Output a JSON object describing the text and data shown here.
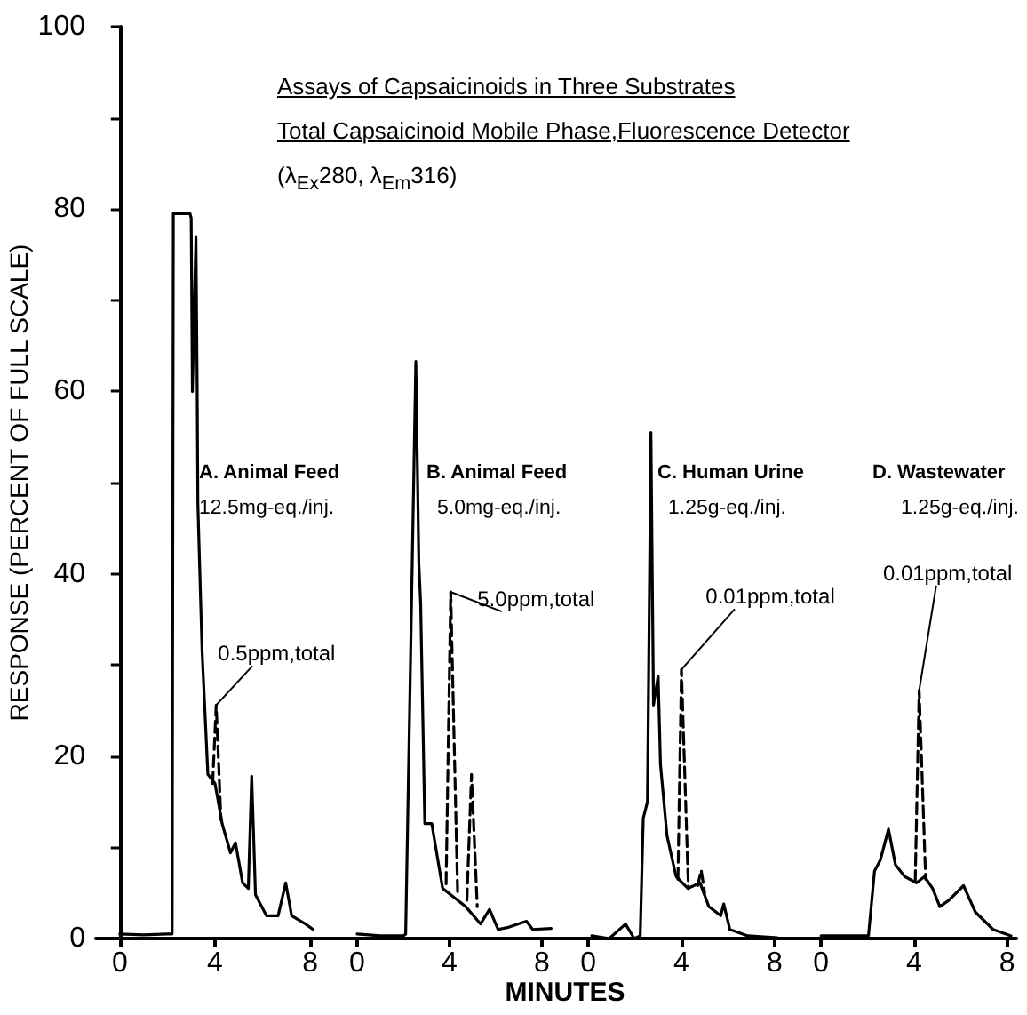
{
  "chart_data": [
    {
      "type": "line",
      "title": "A. Animal Feed",
      "subtitle": "12.5mg-eq./inj.",
      "ylabel": "RESPONSE (PERCENT OF FULL SCALE)",
      "marker": "none",
      "annotations": [
        "Assays of Capsaicinoids in Three Substrates",
        "Total Capsaicinoid Mobile Phase,Fluorescence Detector",
        "(λ$_{Ex}$280, λ$_{Em}$316)",
        {
          "text": "0.5ppm,total",
          "x": 4.05,
          "y": 25.6
        }
      ],
      "xlim": [
        -1,
        9
      ],
      "xticks": [
        0,
        4,
        8
      ],
      "ylim": [
        0,
        100
      ],
      "yticks": [
        0,
        {
          "value": 10,
          "label": null
        },
        20,
        {
          "value": 30,
          "label": null
        },
        40,
        {
          "value": 50,
          "label": null
        },
        60,
        {
          "value": 70,
          "label": null
        },
        80,
        {
          "value": 90,
          "label": null
        },
        100
      ],
      "series": [
        {
          "color": "#000000",
          "x": [
            0,
            1,
            2.0,
            2.2,
            2.25,
            2.95,
            3.0,
            3.05,
            3.2,
            3.25,
            3.28,
            3.46,
            3.7,
            4.0,
            4.3,
            4.65,
            4.86,
            5.16,
            5.4,
            5.54,
            5.7,
            6.16,
            6.65,
            6.97,
            7.22,
            7.8,
            8.12
          ],
          "values": [
            0.5,
            0.4,
            0.5,
            0.5,
            79.5,
            79.5,
            79,
            60,
            77,
            61,
            47.7,
            31.4,
            18,
            17,
            12.6,
            9.4,
            10.5,
            6.1,
            5.5,
            17.8,
            4.8,
            2.5,
            2.5,
            6.1,
            2.5,
            1.6,
            1.0
          ]
        },
        {
          "color": "#000000",
          "line_style": "dashed",
          "x": [
            3.9,
            4.05,
            4.25
          ],
          "values": [
            17,
            25.6,
            13
          ]
        }
      ]
    },
    {
      "type": "line",
      "title": "B. Animal Feed",
      "subtitle": "5.0mg-eq./inj.",
      "xlabel": "MINUTES",
      "tick_labels": "x",
      "marker": "none",
      "annotations": [
        {
          "text": "5.0ppm,total",
          "x": 4.05,
          "y": 38
        }
      ],
      "xlim": [
        -1,
        9
      ],
      "xticks": [
        0,
        4,
        8
      ],
      "ylim": [
        0,
        100
      ],
      "yticks": [
        0,
        20,
        40,
        60,
        80,
        100
      ],
      "series": [
        {
          "color": "#000000",
          "x": [
            0,
            1,
            2.0,
            2.1,
            2.54,
            2.67,
            2.75,
            2.93,
            3.23,
            3.7,
            4.7,
            5.34,
            5.73,
            6.1,
            6.5,
            7.33,
            7.6,
            8.4
          ],
          "values": [
            0.5,
            0.3,
            0.3,
            0.5,
            63.3,
            41.2,
            36.7,
            12.6,
            12.6,
            5.5,
            3.5,
            1.6,
            3.2,
            1.0,
            1.2,
            1.9,
            1.0,
            1.1
          ]
        },
        {
          "color": "#000000",
          "line_style": "dashed",
          "x": [
            3.85,
            4.05,
            4.35
          ],
          "values": [
            6,
            38,
            5
          ]
        },
        {
          "color": "#000000",
          "line_style": "dashed",
          "x": [
            4.75,
            4.95,
            5.2
          ],
          "values": [
            4.2,
            18,
            3.5
          ]
        }
      ]
    },
    {
      "type": "line",
      "title": "C. Human Urine",
      "subtitle": "1.25g-eq./inj.",
      "tick_labels": "x",
      "marker": "none",
      "annotations": [
        {
          "text": "0.01ppm,total",
          "x": 4.0,
          "y": 29.5
        }
      ],
      "xlim": [
        -1,
        9
      ],
      "xticks": [
        0,
        4,
        8
      ],
      "ylim": [
        0,
        100
      ],
      "yticks": [
        0,
        20,
        40,
        60,
        80,
        100
      ],
      "series": [
        {
          "color": "#000000",
          "x": [
            0.15,
            0.9,
            1.6,
            1.97,
            2.23,
            2.36,
            2.54,
            2.69,
            2.8,
            3.0,
            3.1,
            3.38,
            3.77,
            4.28,
            4.8,
            5.18,
            5.69,
            5.82,
            6.08,
            6.85,
            8.13
          ],
          "values": [
            0.3,
            0,
            1.6,
            0,
            0.3,
            13.2,
            15,
            55.5,
            25.6,
            28.8,
            19.1,
            11.3,
            6.8,
            5.5,
            6.1,
            3.5,
            2.5,
            3.8,
            1.0,
            0.3,
            0.1
          ]
        },
        {
          "color": "#000000",
          "line_style": "dashed",
          "x": [
            3.85,
            4.0,
            4.3
          ],
          "values": [
            6.5,
            29.5,
            5.5
          ]
        },
        {
          "color": "#000000",
          "line_style": "dashed",
          "x": [
            4.7,
            4.85,
            5.0
          ],
          "values": [
            5.8,
            7.5,
            5
          ]
        }
      ]
    },
    {
      "type": "line",
      "title": "D. Wastewater",
      "subtitle": "1.25g-eq./inj.",
      "tick_labels": "x",
      "marker": "none",
      "annotations": [
        {
          "text": "0.01ppm,total",
          "x": 4.22,
          "y": 27.2
        }
      ],
      "xlim": [
        -1,
        8.4
      ],
      "xticks": [
        0,
        4,
        8
      ],
      "ylim": [
        0,
        100
      ],
      "yticks": [
        0,
        20,
        40,
        60,
        80,
        100
      ],
      "series": [
        {
          "color": "#000000",
          "x": [
            0,
            1,
            2.04,
            2.3,
            2.55,
            2.9,
            3.2,
            3.6,
            4.1,
            4.45,
            4.8,
            5.11,
            5.5,
            6.13,
            6.64,
            7.4,
            8.17
          ],
          "values": [
            0.3,
            0.3,
            0.3,
            7.4,
            8.6,
            12,
            8.1,
            6.8,
            6.1,
            6.8,
            5.5,
            3.5,
            4.2,
            5.8,
            2.9,
            1.0,
            0.3
          ]
        },
        {
          "color": "#000000",
          "line_style": "dashed",
          "x": [
            4.05,
            4.22,
            4.5
          ],
          "values": [
            6.2,
            27.2,
            6.5
          ]
        }
      ]
    }
  ]
}
